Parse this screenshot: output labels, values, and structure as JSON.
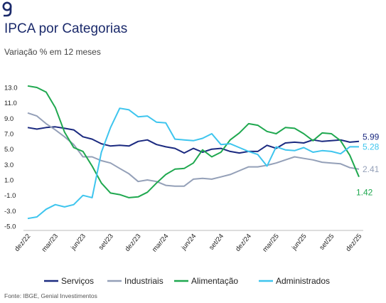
{
  "header": {
    "logo_icon": "genial-g-logo-icon",
    "title": "IPCA por Categorias",
    "subtitle": "Variação % em 12 meses"
  },
  "footer": {
    "source": "Fonte: IBGE, Genial Investimentos"
  },
  "chart_data": {
    "type": "line",
    "title": "IPCA por Categorias",
    "subtitle": "Variação % em 12 meses",
    "xlabel": "",
    "ylabel": "",
    "ylim": [
      -5.0,
      13.0
    ],
    "yticks": [
      "13.0",
      "11.0",
      "9.0",
      "7.0",
      "5.0",
      "3.0",
      "1.0",
      "-1.0",
      "-3.0",
      "-5.0"
    ],
    "x": [
      "dez/22",
      "jan/23",
      "fev/23",
      "mar/23",
      "abr/23",
      "mai/23",
      "jun/23",
      "jul/23",
      "ago/23",
      "set/23",
      "out/23",
      "nov/23",
      "dez/23",
      "jan/24",
      "fev/24",
      "mar/24",
      "abr/24",
      "mai/24",
      "jun/24",
      "jul/24",
      "ago/24",
      "set/24",
      "out/24",
      "nov/24",
      "dez/24",
      "jan/25",
      "fev/25",
      "mar/25",
      "abr/25",
      "mai/25",
      "jun/25",
      "jul/25",
      "ago/25",
      "set/25",
      "out/25",
      "nov/25",
      "dez/25"
    ],
    "xtick_labels": [
      "dez/22",
      "mar/23",
      "jun/23",
      "set/23",
      "dez/23",
      "mar/24",
      "jun/24",
      "set/24",
      "dez/24",
      "mar/25",
      "jun/25",
      "set/25",
      "dez/25"
    ],
    "legend_position": "bottom",
    "grid": false,
    "series": [
      {
        "name": "Serviços",
        "color": "#1b2a80",
        "end_label": "5.99",
        "values": [
          7.8,
          7.6,
          7.8,
          7.9,
          7.7,
          7.5,
          6.6,
          6.3,
          5.7,
          5.4,
          5.5,
          5.4,
          6.0,
          6.2,
          5.6,
          5.3,
          5.1,
          4.5,
          5.1,
          4.6,
          5.0,
          5.1,
          4.7,
          4.5,
          4.7,
          4.7,
          5.5,
          5.1,
          5.8,
          5.9,
          5.8,
          6.2,
          6.0,
          6.1,
          6.2,
          5.9,
          6.0
        ]
      },
      {
        "name": "Industriais",
        "color": "#94a0b8",
        "end_label": "2.41",
        "values": [
          9.7,
          9.3,
          8.3,
          7.5,
          6.6,
          5.6,
          4.0,
          4.0,
          3.5,
          3.2,
          2.5,
          1.8,
          0.8,
          1.0,
          0.8,
          0.3,
          0.2,
          0.2,
          1.1,
          1.2,
          1.1,
          1.4,
          1.7,
          2.2,
          2.7,
          2.7,
          2.9,
          3.2,
          3.6,
          4.0,
          3.8,
          3.6,
          3.3,
          3.2,
          3.1,
          2.6,
          2.4
        ]
      },
      {
        "name": "Alimentação",
        "color": "#1fa84f",
        "end_label": "1.42",
        "values": [
          13.2,
          13.0,
          12.4,
          10.4,
          7.2,
          5.2,
          4.7,
          2.8,
          0.6,
          -0.7,
          -0.9,
          -1.3,
          -1.2,
          -0.6,
          0.6,
          1.7,
          2.4,
          2.5,
          3.2,
          4.9,
          4.0,
          4.6,
          6.2,
          7.1,
          8.3,
          8.1,
          7.3,
          7.0,
          7.8,
          7.7,
          7.0,
          6.1,
          7.1,
          7.0,
          6.1,
          4.2,
          1.4
        ]
      },
      {
        "name": "Administrados",
        "color": "#3ec5ee",
        "end_label": "5.28",
        "values": [
          -4.0,
          -3.8,
          -2.8,
          -2.2,
          -2.5,
          -2.2,
          -1.0,
          -1.3,
          4.6,
          7.8,
          10.3,
          10.1,
          9.2,
          9.3,
          8.5,
          8.4,
          6.3,
          6.2,
          6.1,
          6.4,
          7.0,
          5.6,
          5.7,
          5.2,
          4.7,
          4.3,
          2.8,
          5.3,
          4.9,
          4.8,
          5.2,
          4.6,
          4.8,
          4.7,
          4.4,
          5.3,
          5.3
        ]
      }
    ]
  }
}
